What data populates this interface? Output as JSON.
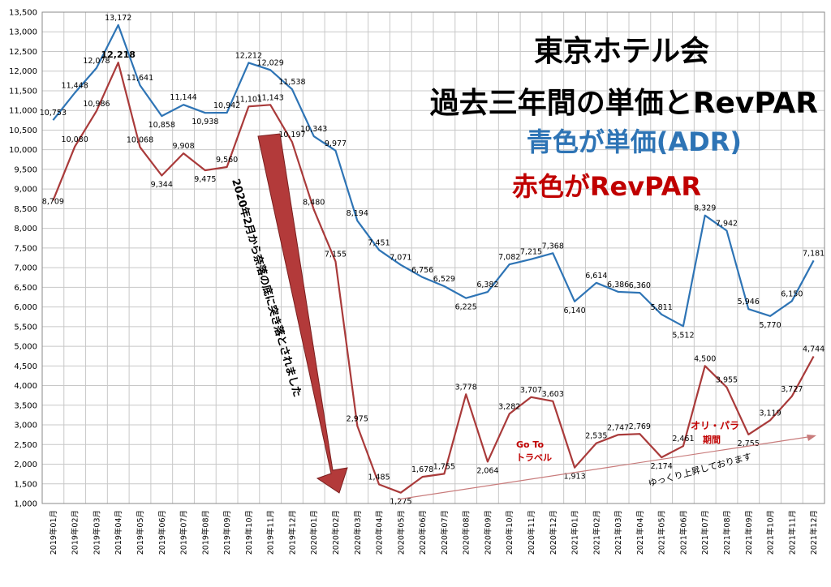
{
  "title": {
    "line1": "東京ホテル会",
    "line2": "過去三年間の単価とRevPAR",
    "line3": "青色が単価(ADR)",
    "line4": "赤色がRevPAR"
  },
  "annotations": {
    "drop_note": "2020年2月から奈落の底に突き落とされました",
    "goto_label_1": "Go To",
    "goto_label_2": "トラベル",
    "olympics_label_1": "オリ・パラ",
    "olympics_label_2": "期間",
    "rising_note": "ゆっくり上昇しております"
  },
  "colors": {
    "adr": "#2e74b5",
    "revpar": "#a93a3a",
    "arrow_fill": "#b33a3a",
    "annotation_red": "#c00000"
  },
  "chart_data": {
    "type": "line",
    "x": [
      "2019年01月",
      "2019年02月",
      "2019年03月",
      "2019年04月",
      "2019年05月",
      "2019年06月",
      "2019年07月",
      "2019年08月",
      "2019年09月",
      "2019年10月",
      "2019年11月",
      "2019年12月",
      "2020年01月",
      "2020年02月",
      "2020年03月",
      "2020年04月",
      "2020年05月",
      "2020年06月",
      "2020年07月",
      "2020年08月",
      "2020年09月",
      "2020年10月",
      "2020年11月",
      "2020年12月",
      "2021年01月",
      "2021年02月",
      "2021年03月",
      "2021年04月",
      "2021年05月",
      "2021年06月",
      "2021年07月",
      "2021年08月",
      "2021年09月",
      "2021年10月",
      "2021年11月",
      "2021年12月"
    ],
    "series": [
      {
        "values": [
          10753,
          11448,
          12078,
          13172,
          11641,
          10858,
          11144,
          10938,
          10942,
          12212,
          12029,
          11538,
          10343,
          9977,
          8194,
          7451,
          7071,
          6756,
          6529,
          6225,
          6382,
          7082,
          7215,
          7368,
          6140,
          6614,
          6386,
          6360,
          5811,
          5512,
          8329,
          7942,
          5946,
          5770,
          6150,
          7181
        ],
        "labels": [
          "10,753",
          "11,448",
          "12,078",
          "13,172",
          "11,641",
          "10,858",
          "11,144",
          "10,938",
          "10,942",
          "12,212",
          "12,029",
          "11,538",
          "10,343",
          "9,977",
          "8,194",
          "7,451",
          "7,071",
          "6,756",
          "6,529",
          "6,225",
          "6,382",
          "7,082",
          "7,215",
          "7,368",
          "6,140",
          "6,614",
          "6,386",
          "6,360",
          "5,811",
          "5,512",
          "8,329",
          "7,942",
          "5,946",
          "5,770",
          "6,150",
          "7,181"
        ]
      },
      {
        "values": [
          8709,
          10080,
          10986,
          12218,
          10068,
          9344,
          9908,
          9475,
          9560,
          11101,
          11143,
          10197,
          8480,
          7155,
          2975,
          1485,
          1275,
          1678,
          1755,
          3778,
          2064,
          3282,
          3707,
          3603,
          1913,
          2535,
          2747,
          2769,
          2174,
          2461,
          4500,
          3955,
          2755,
          3119,
          3727,
          4744
        ],
        "labels": [
          "8,709",
          "10,080",
          "10,986",
          "12,218",
          "10,068",
          "9,344",
          "9,908",
          "9,475",
          "9,560",
          "11,101",
          "11,143",
          "10,197",
          "8,480",
          "7,155",
          "2,975",
          "1,485",
          "1,275",
          "1,678",
          "1,755",
          "3,778",
          "2,064",
          "3,282",
          "3,707",
          "3,603",
          "1,913",
          "2,535",
          "2,747",
          "2,769",
          "2,174",
          "2,461",
          "4,500",
          "3,955",
          "2,755",
          "3,119",
          "3,727",
          "4,744"
        ]
      }
    ],
    "ylim": [
      1000,
      13500
    ],
    "yticks": [
      "1,000",
      "1,500",
      "2,000",
      "2,500",
      "3,000",
      "3,500",
      "4,000",
      "4,500",
      "5,000",
      "5,500",
      "6,000",
      "6,500",
      "7,000",
      "7,500",
      "8,000",
      "8,500",
      "9,000",
      "9,500",
      "10,000",
      "10,500",
      "11,000",
      "11,500",
      "12,000",
      "12,500",
      "13,000",
      "13,500"
    ],
    "ytick_values": [
      1000,
      1500,
      2000,
      2500,
      3000,
      3500,
      4000,
      4500,
      5000,
      5500,
      6000,
      6500,
      7000,
      7500,
      8000,
      8500,
      9000,
      9500,
      10000,
      10500,
      11000,
      11500,
      12000,
      12500,
      13000,
      13500
    ],
    "grid": true
  }
}
